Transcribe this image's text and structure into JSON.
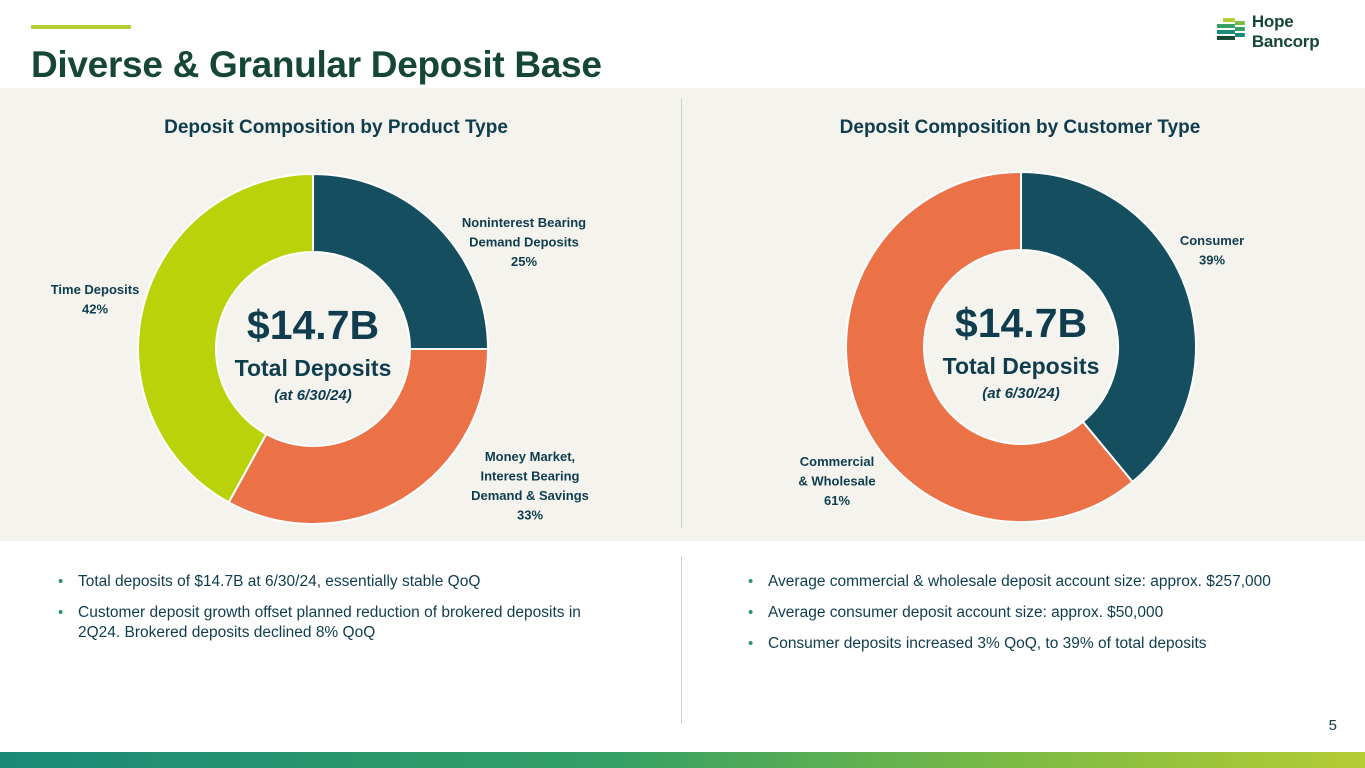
{
  "header": {
    "title": "Diverse & Granular Deposit Base",
    "logo_text": "Hope Bancorp"
  },
  "colors": {
    "dark_teal": "#154f5f",
    "orange": "#eb7147",
    "lime": "#bad20a",
    "title_green": "#154734",
    "text_navy": "#0f3d4e"
  },
  "chart_data": [
    {
      "type": "pie",
      "title": "Deposit Composition by Product Type",
      "center": {
        "value": "$14.7B",
        "label": "Total Deposits",
        "sublabel": "(at 6/30/24)"
      },
      "slices": [
        {
          "label_lines": [
            "Noninterest Bearing",
            "Demand Deposits"
          ],
          "pct_text": "25%",
          "value": 25,
          "color": "#154f5f"
        },
        {
          "label_lines": [
            "Money Market,",
            "Interest Bearing",
            "Demand & Savings"
          ],
          "pct_text": "33%",
          "value": 33,
          "color": "#eb7147"
        },
        {
          "label_lines": [
            "Time Deposits"
          ],
          "pct_text": "42%",
          "value": 42,
          "color": "#bad20a"
        }
      ]
    },
    {
      "type": "pie",
      "title": "Deposit Composition by Customer Type",
      "center": {
        "value": "$14.7B",
        "label": "Total Deposits",
        "sublabel": "(at 6/30/24)"
      },
      "slices": [
        {
          "label_lines": [
            "Consumer"
          ],
          "pct_text": "39%",
          "value": 39,
          "color": "#154f5f"
        },
        {
          "label_lines": [
            "Commercial",
            "& Wholesale"
          ],
          "pct_text": "61%",
          "value": 61,
          "color": "#eb7147"
        }
      ]
    }
  ],
  "bullets_left": [
    "Total deposits of $14.7B at 6/30/24, essentially stable QoQ",
    "Customer deposit growth offset planned reduction of brokered deposits in 2Q24. Brokered deposits declined 8% QoQ"
  ],
  "bullets_right": [
    "Average commercial & wholesale deposit account size: approx. $257,000",
    "Average consumer deposit account size: approx. $50,000",
    "Consumer deposits increased 3% QoQ, to 39% of total deposits"
  ],
  "footer": {
    "page_number": "5"
  }
}
